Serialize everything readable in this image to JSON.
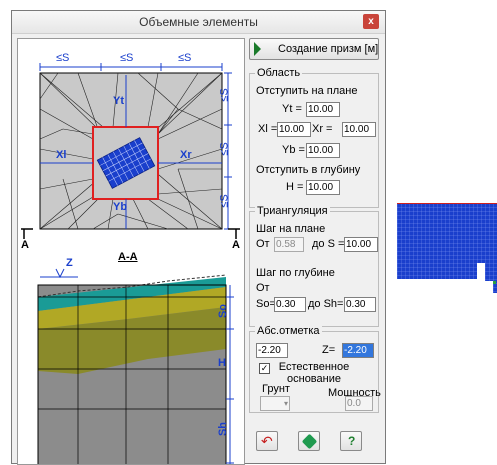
{
  "window": {
    "title": "Объемные элементы",
    "close": "x"
  },
  "preview": {
    "plan_s_labels": [
      "≤S",
      "≤S",
      "≤S"
    ],
    "plan_side_s": [
      "≤S",
      "≤S",
      "≤S"
    ],
    "offsets": {
      "top": "Yt",
      "bottom": "Yb",
      "left": "Xl",
      "right": "Xr"
    },
    "section_marker_left": "A",
    "section_marker_right": "A",
    "section_title": "A-A",
    "z_label": "Z",
    "depth_labels": {
      "so": "So",
      "h": "H",
      "sh": "Sh"
    }
  },
  "create_button": {
    "label": "Создание призм [м]"
  },
  "region": {
    "title": "Область",
    "plan_offset_label": "Отступить на плане",
    "yt_label": "Yt =",
    "yt_value": "10.00",
    "xl_label": "Xl =",
    "xl_value": "10.00",
    "xr_label": "Xr =",
    "xr_value": "10.00",
    "yb_label": "Yb =",
    "yb_value": "10.00",
    "depth_offset_label": "Отступить в глубину",
    "h_label": "H =",
    "h_value": "10.00"
  },
  "triang": {
    "title": "Триангуляция",
    "plan_step_label": "Шаг на плане",
    "from_label": "От",
    "from_value": "0.58",
    "to_s_label": "до S =",
    "to_s_value": "10.00",
    "depth_step_label": "Шаг по глубине",
    "from2_label": "От",
    "so_label": "So=",
    "so_value": "0.30",
    "sh_label": "до Sh=",
    "sh_value": "0.30"
  },
  "elevation": {
    "title": "Абс.отметка",
    "abs_value": "-2.20",
    "z_label": "Z=",
    "z_value": "-2.20",
    "natural_checked": true,
    "natural_label": "Естественное основание",
    "ground_label": "Грунт",
    "thickness_label": "Мощность",
    "thickness_value": "0.0"
  },
  "colors": {
    "mesh": "#1a3fcc",
    "highlight": "#e02020",
    "water": "#1a9b96",
    "sand": "#b1a825",
    "clay": "#8a8a2a",
    "deep": "#8c8c8c"
  }
}
